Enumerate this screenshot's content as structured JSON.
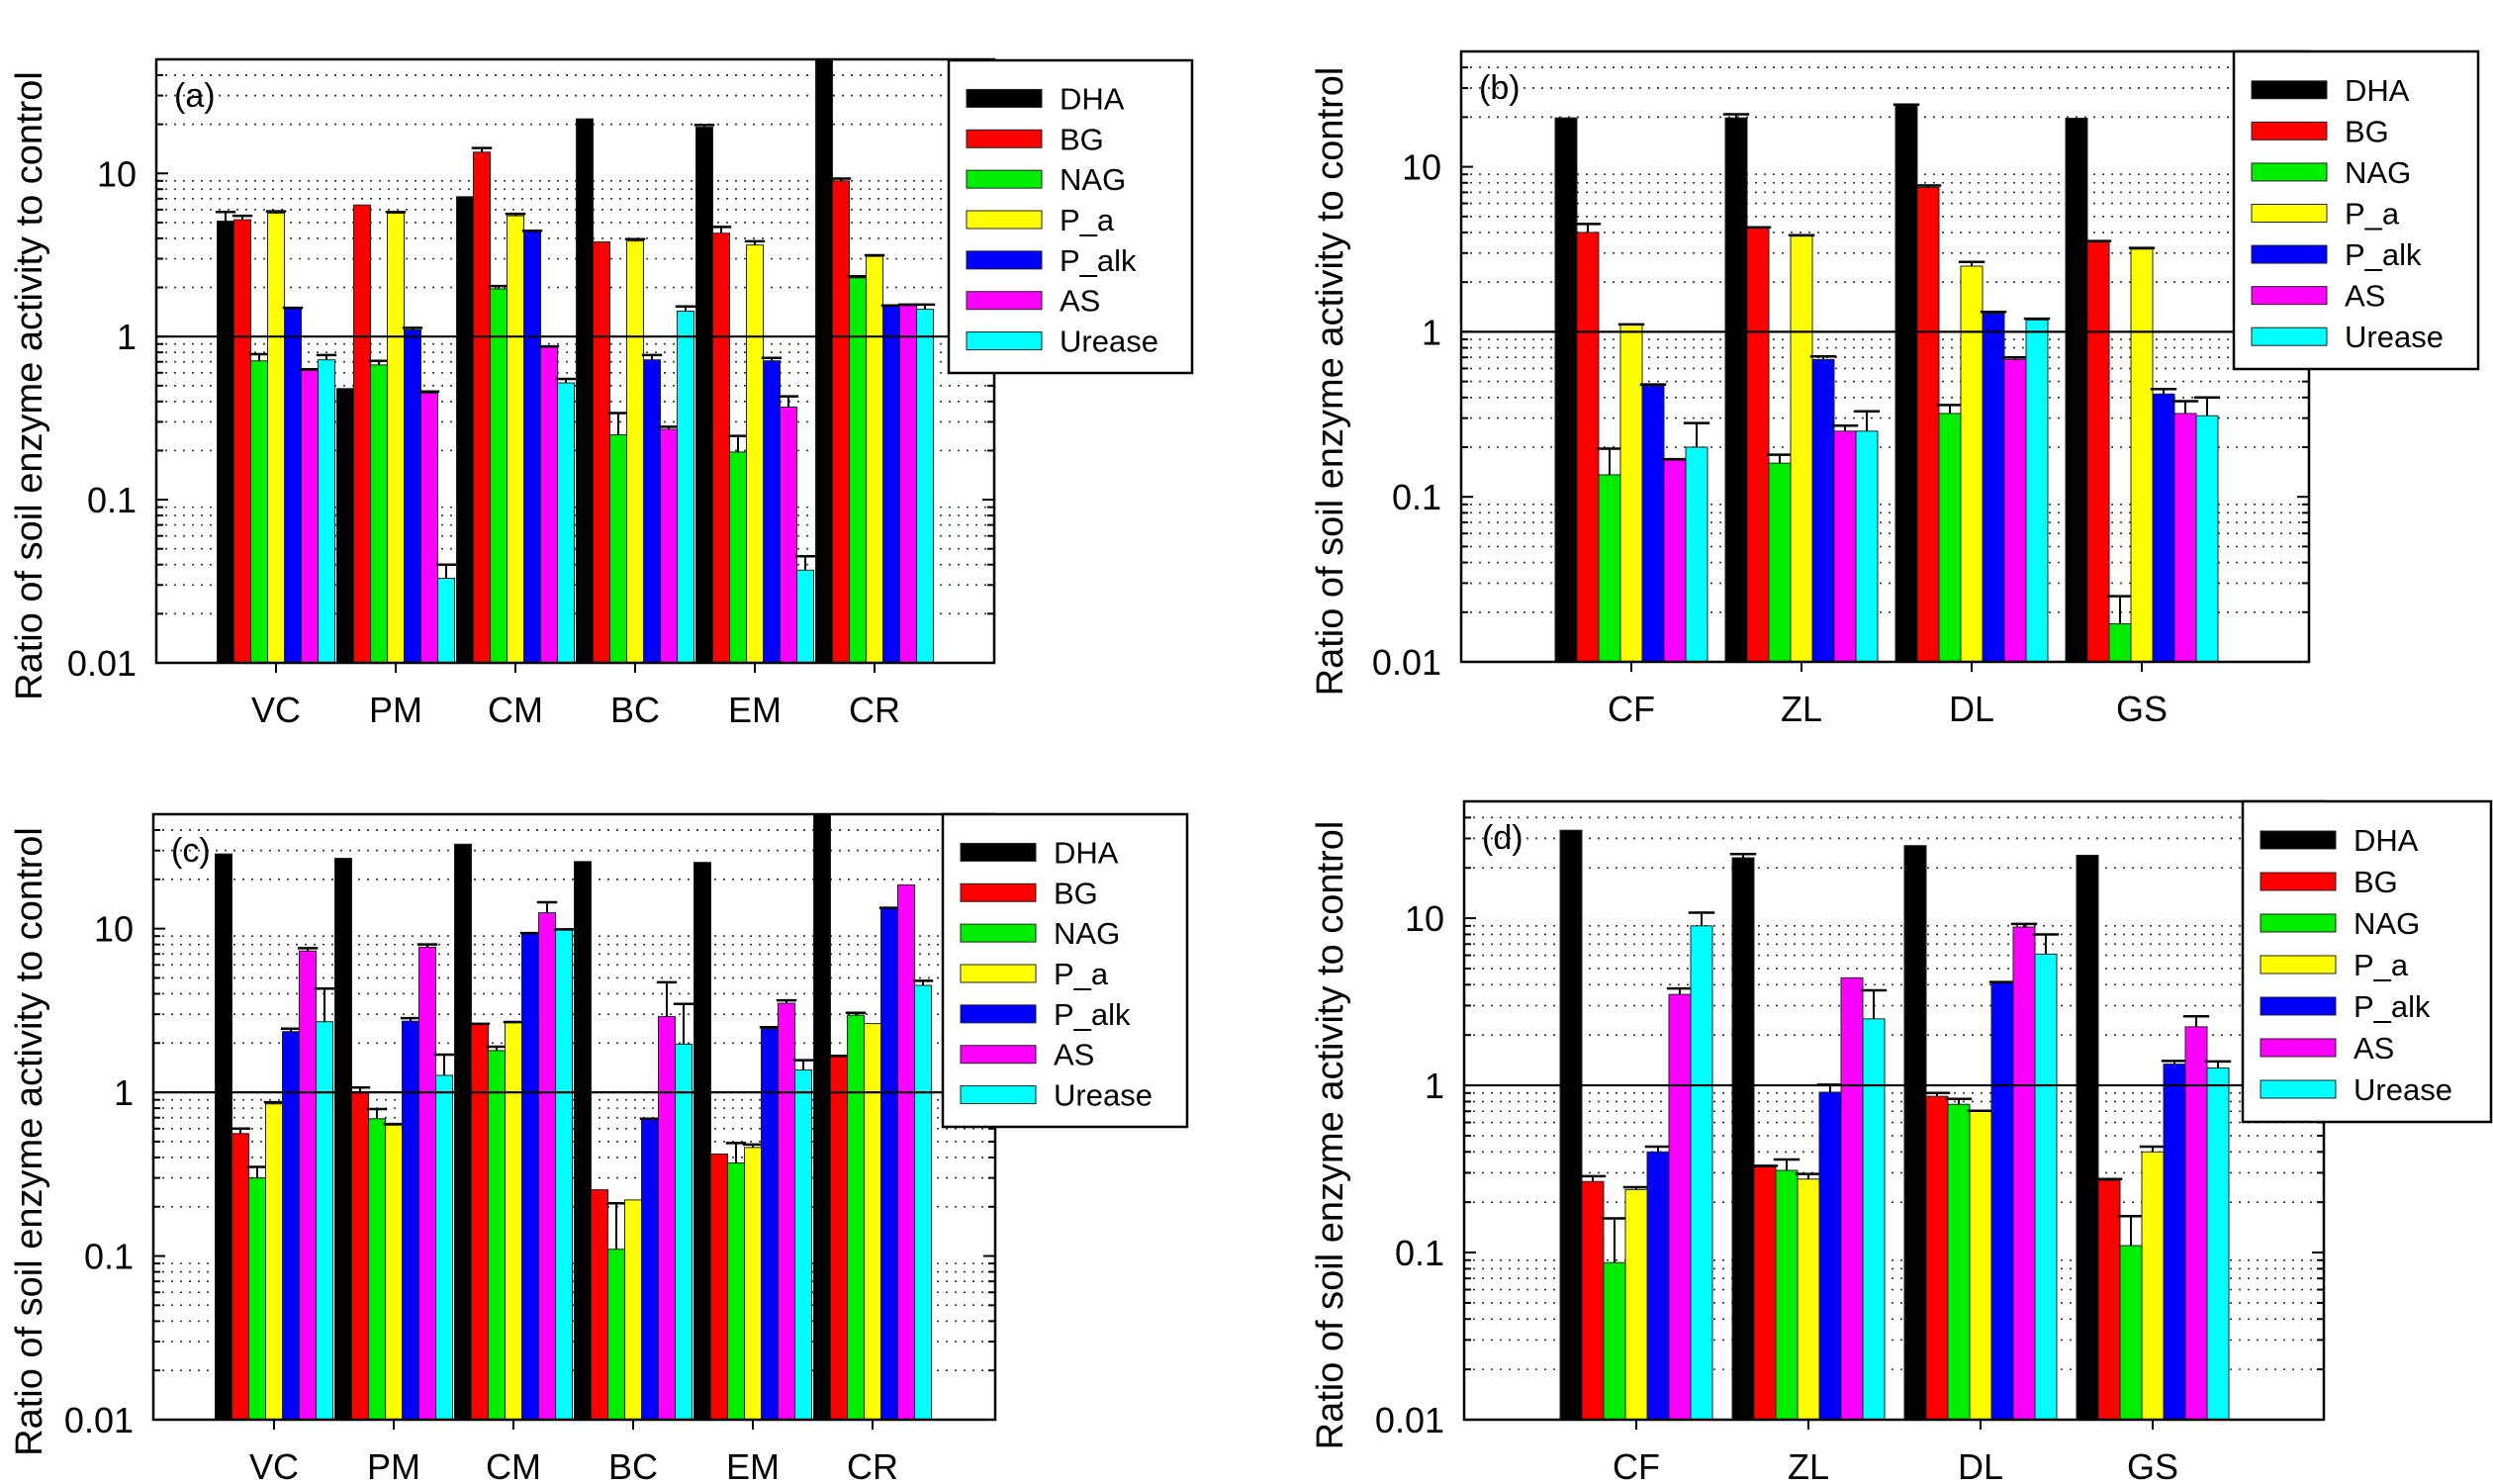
{
  "figure": {
    "description": "Four-panel grouped bar chart of soil enzyme activity ratios (log scale)"
  },
  "chart_data": [
    {
      "type": "bar",
      "panel_label": "(a)",
      "title": "",
      "xlabel": "",
      "ylabel": "Ratio of soil enzyme activity to control",
      "yscale": "log",
      "ylim": [
        0.01,
        50
      ],
      "yticks": [
        "0.01",
        "0.1",
        "1",
        "10"
      ],
      "reference_line": 1,
      "grid": "dotted minor gridlines",
      "legend": "top-right",
      "categories": [
        "VC",
        "PM",
        "CM",
        "BC",
        "EM",
        "CR"
      ],
      "series": [
        {
          "name": "DHA",
          "color": "#000000",
          "values": [
            5.1,
            0.48,
            7.2,
            21.6,
            19.2,
            50
          ],
          "errors": [
            0.7,
            0,
            0,
            0,
            0.6,
            0
          ]
        },
        {
          "name": "BG",
          "color": "#ff0000",
          "values": [
            5.2,
            6.4,
            13.5,
            3.8,
            4.3,
            9.0
          ],
          "errors": [
            0.3,
            0,
            0.8,
            0,
            0.4,
            0.3
          ]
        },
        {
          "name": "NAG",
          "color": "#00ee00",
          "values": [
            0.71,
            0.67,
            1.96,
            0.25,
            0.196,
            2.29
          ],
          "errors": [
            0.07,
            0.04,
            0.08,
            0.09,
            0.05,
            0.05
          ]
        },
        {
          "name": "P_a",
          "color": "#ffff00",
          "values": [
            5.7,
            5.7,
            5.5,
            3.85,
            3.64,
            3.1
          ],
          "errors": [
            0.15,
            0.1,
            0.15,
            0.1,
            0.2,
            0.05
          ]
        },
        {
          "name": "P_alk",
          "color": "#0000ff",
          "values": [
            1.48,
            1.1,
            4.4,
            0.72,
            0.71,
            1.53
          ],
          "errors": [
            0.02,
            0.03,
            0.05,
            0.05,
            0.03,
            0.02
          ]
        },
        {
          "name": "AS",
          "color": "#ff00ff",
          "values": [
            0.62,
            0.45,
            0.86,
            0.27,
            0.37,
            1.55
          ],
          "errors": [
            0.01,
            0.01,
            0.01,
            0.01,
            0.06,
            0.02
          ]
        },
        {
          "name": "Urease",
          "color": "#00ffff",
          "values": [
            0.72,
            0.033,
            0.52,
            1.43,
            0.037,
            1.47
          ],
          "errors": [
            0.05,
            0.007,
            0.03,
            0.1,
            0.008,
            0.1
          ]
        }
      ]
    },
    {
      "type": "bar",
      "panel_label": "(b)",
      "title": "",
      "xlabel": "",
      "ylabel": "Ratio of soil enzyme activity to control",
      "yscale": "log",
      "ylim": [
        0.01,
        50
      ],
      "yticks": [
        "0.01",
        "0.1",
        "1",
        "10"
      ],
      "reference_line": 1,
      "grid": "dotted minor gridlines",
      "legend": "top-right",
      "categories": [
        "CF",
        "ZL",
        "DL",
        "GS"
      ],
      "series": [
        {
          "name": "DHA",
          "color": "#000000",
          "values": [
            19.8,
            19.8,
            23.5,
            19.7
          ],
          "errors": [
            0,
            1.0,
            0.3,
            0
          ]
        },
        {
          "name": "BG",
          "color": "#ff0000",
          "values": [
            4.0,
            4.25,
            7.5,
            3.5
          ],
          "errors": [
            0.5,
            0.05,
            0.2,
            0.05
          ]
        },
        {
          "name": "NAG",
          "color": "#00ee00",
          "values": [
            0.136,
            0.16,
            0.32,
            0.017
          ],
          "errors": [
            0.06,
            0.02,
            0.04,
            0.008
          ]
        },
        {
          "name": "P_a",
          "color": "#ffff00",
          "values": [
            1.1,
            3.8,
            2.5,
            3.17
          ],
          "errors": [
            0.01,
            0.05,
            0.15,
            0.05
          ]
        },
        {
          "name": "P_alk",
          "color": "#0000ff",
          "values": [
            0.47,
            0.68,
            1.29,
            0.42
          ],
          "errors": [
            0.01,
            0.03,
            0.03,
            0.03
          ]
        },
        {
          "name": "AS",
          "color": "#ff00ff",
          "values": [
            0.167,
            0.25,
            0.68,
            0.32
          ],
          "errors": [
            0.002,
            0.02,
            0.02,
            0.06
          ]
        },
        {
          "name": "Urease",
          "color": "#00ffff",
          "values": [
            0.2,
            0.25,
            1.18,
            0.31
          ],
          "errors": [
            0.08,
            0.08,
            0.02,
            0.09
          ]
        }
      ]
    },
    {
      "type": "bar",
      "panel_label": "(c)",
      "title": "",
      "xlabel": "",
      "ylabel": "Ratio of soil enzyme activity to control",
      "yscale": "log",
      "ylim": [
        0.01,
        50
      ],
      "yticks": [
        "0.01",
        "0.1",
        "1",
        "10"
      ],
      "reference_line": 1,
      "grid": "dotted minor gridlines",
      "legend": "top-right",
      "categories": [
        "VC",
        "PM",
        "CM",
        "BC",
        "EM",
        "CR"
      ],
      "series": [
        {
          "name": "DHA",
          "color": "#000000",
          "values": [
            28.6,
            26.9,
            32.8,
            25.7,
            25.4,
            50
          ],
          "errors": [
            0,
            0,
            0,
            0,
            0,
            0
          ]
        },
        {
          "name": "BG",
          "color": "#ff0000",
          "values": [
            0.56,
            1.0,
            2.6,
            0.254,
            0.42,
            1.65
          ],
          "errors": [
            0.04,
            0.07,
            0.02,
            0,
            0,
            0.02
          ]
        },
        {
          "name": "NAG",
          "color": "#00ee00",
          "values": [
            0.3,
            0.69,
            1.8,
            0.11,
            0.37,
            2.96
          ],
          "errors": [
            0.05,
            0.1,
            0.1,
            0.1,
            0.12,
            0.1
          ]
        },
        {
          "name": "P_a",
          "color": "#ffff00",
          "values": [
            0.85,
            0.63,
            2.66,
            0.22,
            0.46,
            2.63
          ],
          "errors": [
            0.02,
            0.01,
            0.03,
            0,
            0.02,
            0
          ]
        },
        {
          "name": "P_alk",
          "color": "#0000ff",
          "values": [
            2.35,
            2.72,
            9.3,
            0.68,
            2.44,
            13.3
          ],
          "errors": [
            0.1,
            0.12,
            0.1,
            0.01,
            0.06,
            0.1
          ]
        },
        {
          "name": "AS",
          "color": "#ff00ff",
          "values": [
            7.3,
            7.7,
            12.5,
            2.9,
            3.5,
            18.5
          ],
          "errors": [
            0.3,
            0.3,
            2.0,
            1.8,
            0.15,
            0
          ]
        },
        {
          "name": "Urease",
          "color": "#00ffff",
          "values": [
            2.7,
            1.27,
            9.8,
            1.97,
            1.37,
            4.5
          ],
          "errors": [
            1.6,
            0.43,
            0.1,
            1.5,
            0.2,
            0.3
          ]
        }
      ]
    },
    {
      "type": "bar",
      "panel_label": "(d)",
      "title": "",
      "xlabel": "",
      "ylabel": "Ratio of soil enzyme activity to control",
      "yscale": "log",
      "ylim": [
        0.01,
        50
      ],
      "yticks": [
        "0.01",
        "0.1",
        "1",
        "10"
      ],
      "reference_line": 1,
      "grid": "dotted minor gridlines",
      "legend": "top-right",
      "categories": [
        "CF",
        "ZL",
        "DL",
        "GS"
      ],
      "series": [
        {
          "name": "DHA",
          "color": "#000000",
          "values": [
            33.6,
            23.0,
            27.2,
            23.8
          ],
          "errors": [
            0,
            1.2,
            0,
            0
          ]
        },
        {
          "name": "BG",
          "color": "#ff0000",
          "values": [
            0.266,
            0.325,
            0.86,
            0.27
          ],
          "errors": [
            0.02,
            0.005,
            0.04,
            0.005
          ]
        },
        {
          "name": "NAG",
          "color": "#00ee00",
          "values": [
            0.087,
            0.31,
            0.77,
            0.11
          ],
          "errors": [
            0.073,
            0.05,
            0.06,
            0.055
          ]
        },
        {
          "name": "P_a",
          "color": "#ffff00",
          "values": [
            0.238,
            0.275,
            0.7,
            0.4
          ],
          "errors": [
            0.008,
            0.02,
            0.005,
            0.03
          ]
        },
        {
          "name": "P_alk",
          "color": "#0000ff",
          "values": [
            0.4,
            0.91,
            4.1,
            1.34
          ],
          "errors": [
            0.03,
            0.1,
            0.05,
            0.06
          ]
        },
        {
          "name": "AS",
          "color": "#ff00ff",
          "values": [
            3.5,
            4.4,
            8.85,
            2.24
          ],
          "errors": [
            0.3,
            0,
            0.4,
            0.35
          ]
        },
        {
          "name": "Urease",
          "color": "#00ffff",
          "values": [
            9.0,
            2.5,
            6.1,
            1.27
          ],
          "errors": [
            1.8,
            1.2,
            1.9,
            0.12
          ]
        }
      ]
    }
  ]
}
